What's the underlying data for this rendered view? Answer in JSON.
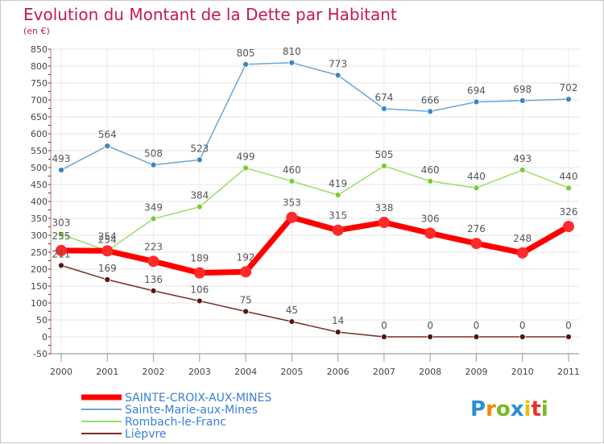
{
  "chart_data": {
    "type": "line",
    "title": "Evolution du Montant de la Dette par Habitant",
    "subtitle": "(en €)",
    "x": [
      "2000",
      "2001",
      "2002",
      "2003",
      "2004",
      "2005",
      "2006",
      "2007",
      "2008",
      "2009",
      "2010",
      "2011"
    ],
    "ylim": [
      -50,
      850
    ],
    "yticks": [
      -50,
      0,
      50,
      100,
      150,
      200,
      250,
      300,
      350,
      400,
      450,
      500,
      550,
      600,
      650,
      700,
      750,
      800,
      850
    ],
    "grid": true,
    "legend_position": "bottom-left",
    "series": [
      {
        "name": "SAINTE-CROIX-AUX-MINES",
        "color": "#ff0000",
        "markerColor": "#ff2a2a",
        "width": 7,
        "marker": 7,
        "values": [
          255,
          254,
          223,
          189,
          192,
          353,
          315,
          338,
          306,
          276,
          248,
          326
        ],
        "labelOffsets": [
          -1,
          -1,
          -1,
          -1,
          -1,
          -1,
          -1,
          -1,
          -1,
          -1,
          -1,
          -1
        ]
      },
      {
        "name": "Sainte-Marie-aux-Mines",
        "color": "#6aa6d6",
        "markerColor": "#3a86c8",
        "width": 1.5,
        "marker": 3.5,
        "values": [
          493,
          564,
          508,
          523,
          805,
          810,
          773,
          674,
          666,
          694,
          698,
          702
        ],
        "labelOffsets": [
          -1,
          -1,
          -1,
          -1,
          -1,
          -1,
          -1,
          -1,
          -1,
          -1,
          -1,
          -1
        ]
      },
      {
        "name": "Rombach-le-Franc",
        "color": "#99dd66",
        "markerColor": "#77cc33",
        "width": 1.5,
        "marker": 3.5,
        "values": [
          303,
          254,
          349,
          384,
          499,
          460,
          419,
          505,
          460,
          440,
          493,
          440
        ],
        "labelOffsets": [
          -1,
          -1,
          -1,
          -1,
          -1,
          -1,
          -1,
          -1,
          -1,
          -1,
          -1,
          -1
        ]
      },
      {
        "name": "Lièpvre",
        "color": "#7a2a2a",
        "markerColor": "#5a1414",
        "width": 1.5,
        "marker": 3.5,
        "values": [
          211,
          169,
          136,
          106,
          75,
          45,
          14,
          0,
          0,
          0,
          0,
          0
        ],
        "labelOffsets": [
          -1,
          -1,
          -1,
          -1,
          -1,
          -1,
          -1,
          -1,
          -1,
          -1,
          -1,
          -1
        ]
      }
    ]
  },
  "logo": {
    "letters": [
      "P",
      "r",
      "o",
      "x",
      "i",
      "t",
      "i"
    ],
    "colors": [
      "#2a8fd6",
      "#f08a00",
      "#77bb22",
      "#2a8fd6",
      "#e8c000",
      "#e83030",
      "#77bb22"
    ]
  }
}
